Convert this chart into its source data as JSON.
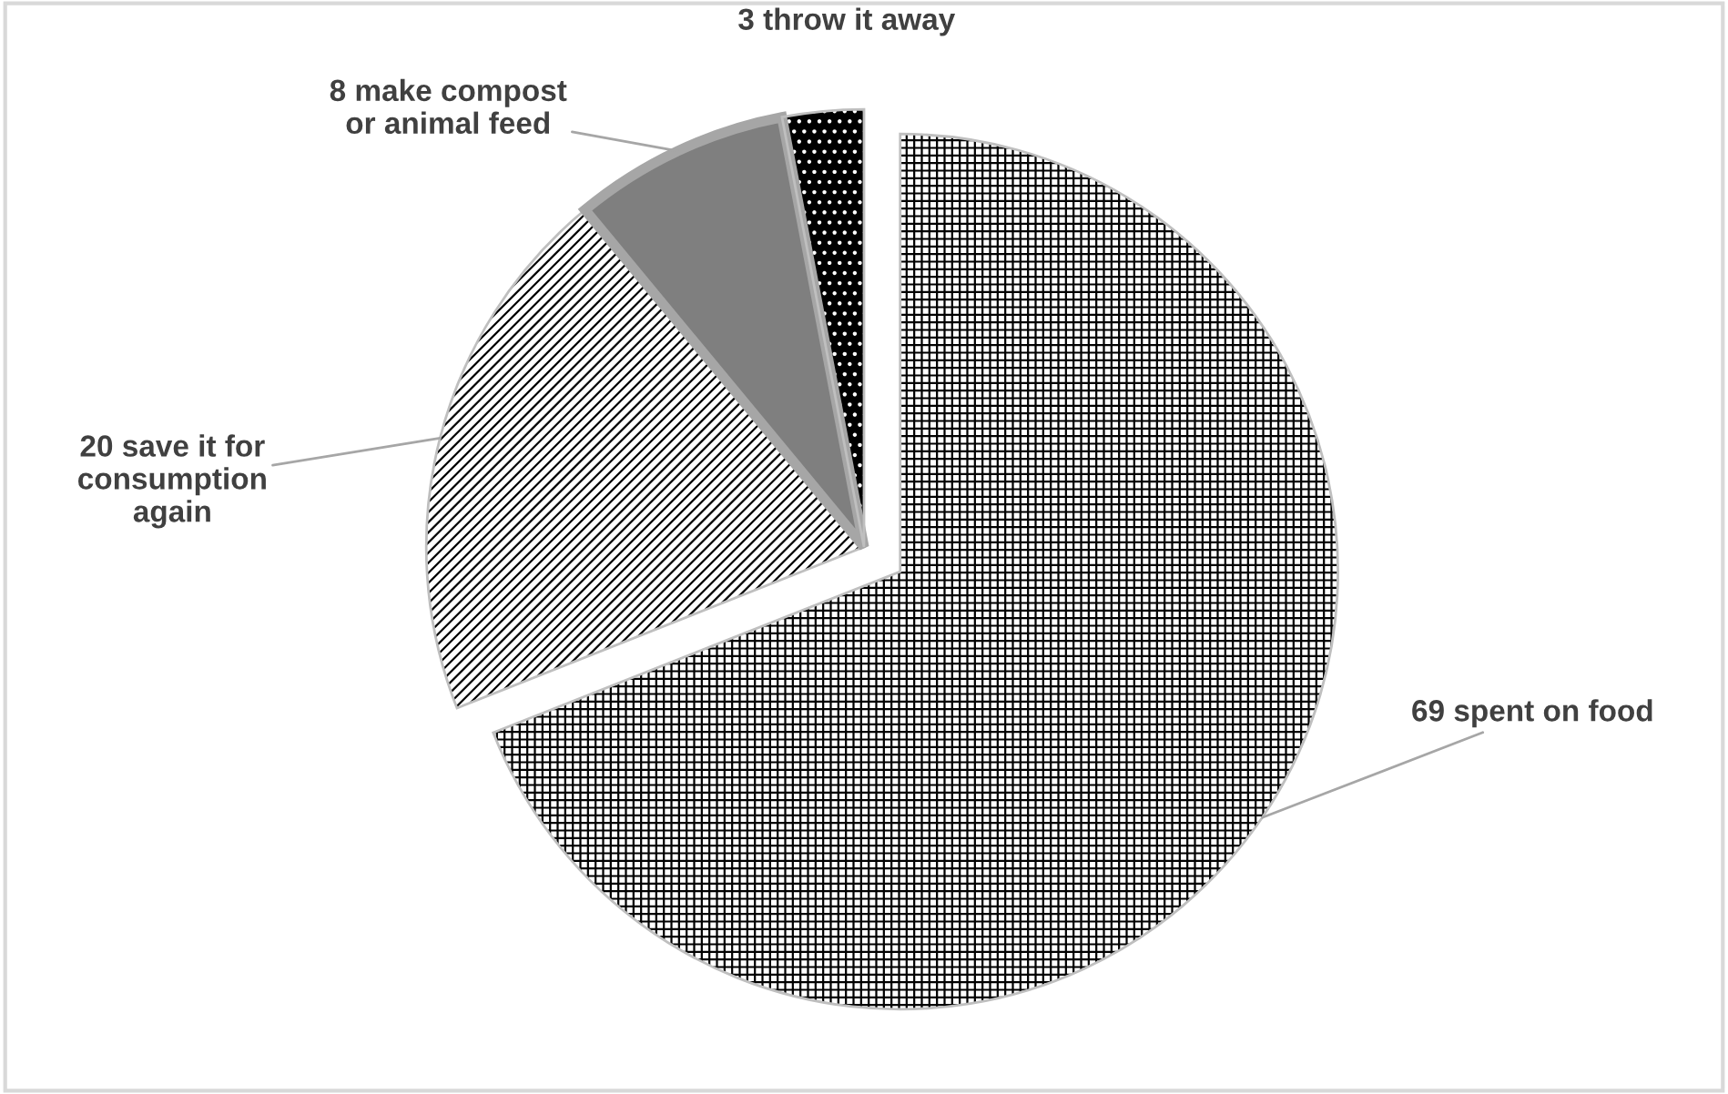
{
  "chart_data": {
    "type": "pie",
    "categories": [
      "69 spent on food",
      "20 save it for\nconsumption\nagain",
      "8 make compost\nor animal feed",
      "3 throw it away"
    ],
    "values": [
      69,
      20,
      8,
      3
    ],
    "colors": [
      "#ffffff",
      "#ffffff",
      "#7f7f7f",
      "#000000"
    ],
    "legend": false
  }
}
